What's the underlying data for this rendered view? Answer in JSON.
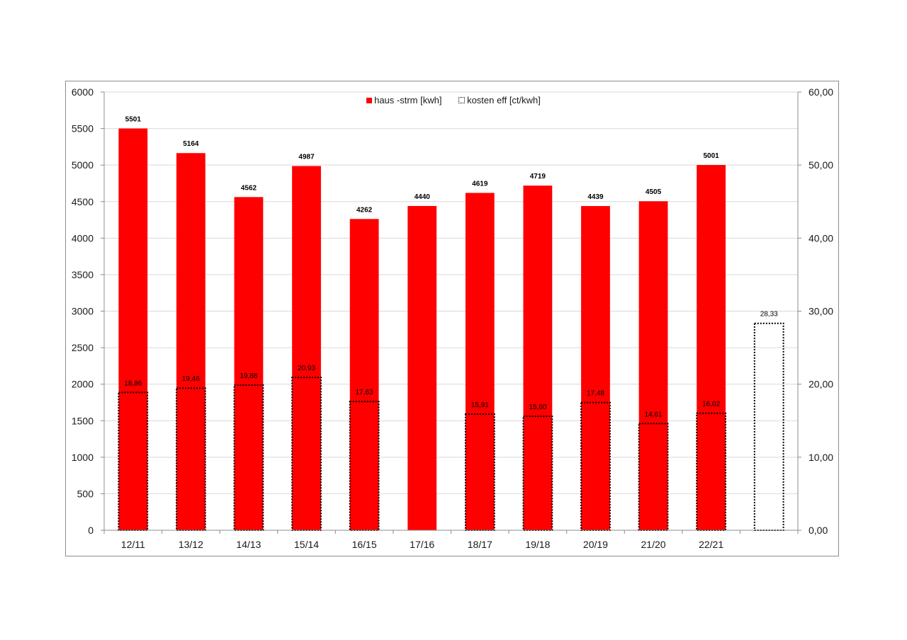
{
  "chart_data": {
    "type": "bar",
    "categories": [
      "12/11",
      "13/12",
      "14/13",
      "15/14",
      "16/15",
      "17/16",
      "18/17",
      "19/18",
      "20/19",
      "21/20",
      "22/21",
      ""
    ],
    "series": [
      {
        "name": "haus -strm [kwh]",
        "axis": "left",
        "color": "#ff0000",
        "values": [
          5501,
          5164,
          4562,
          4987,
          4262,
          4440,
          4619,
          4719,
          4439,
          4505,
          5001,
          null
        ],
        "labels": [
          "5501",
          "5164",
          "4562",
          "4987",
          "4262",
          "4440",
          "4619",
          "4719",
          "4439",
          "4505",
          "5001",
          ""
        ]
      },
      {
        "name": "kosten eff [ct/kwh]",
        "axis": "right",
        "style": "dotted-outline",
        "values": [
          18.86,
          19.46,
          19.88,
          20.93,
          17.63,
          null,
          15.91,
          15.6,
          17.48,
          14.61,
          16.02,
          28.33
        ],
        "labels": [
          "18,86",
          "19,46",
          "19,88",
          "20,93",
          "17,63",
          "",
          "15,91",
          "15,60",
          "17,48",
          "14,61",
          "16,02",
          "28,33"
        ]
      }
    ],
    "left_axis": {
      "min": 0,
      "max": 6000,
      "ticks": [
        "0",
        "500",
        "1000",
        "1500",
        "2000",
        "2500",
        "3000",
        "3500",
        "4000",
        "4500",
        "5000",
        "5500",
        "6000"
      ]
    },
    "right_axis": {
      "min": 0,
      "max": 60,
      "ticks": [
        "0,00",
        "10,00",
        "20,00",
        "30,00",
        "40,00",
        "50,00",
        "60,00"
      ]
    },
    "grid": true,
    "legend_position": "top-center"
  }
}
